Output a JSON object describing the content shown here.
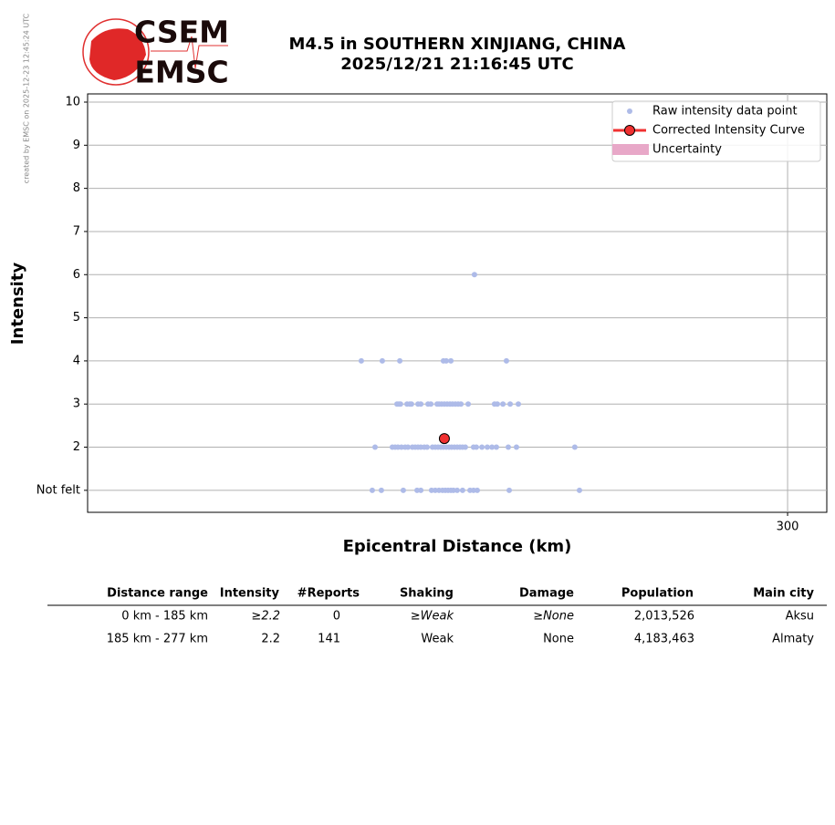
{
  "logo": {
    "top": "CSEM",
    "bottom": "EMSC"
  },
  "credit": "created by EMSC on 2025-12-23 12:45:24 UTC",
  "chart_data": {
    "type": "scatter",
    "title": "M4.5 in SOUTHERN XINJIANG, CHINA",
    "subtitle": "2025/12/21 21:16:45 UTC",
    "x_label": "Epicentral Distance (km)",
    "y_label": "Intensity",
    "xlim": [
      0,
      316.8
    ],
    "xticks": [
      300
    ],
    "ylim": [
      0.49,
      10.19
    ],
    "yticks": [
      {
        "value": 1,
        "label": "Not felt"
      },
      2,
      3,
      4,
      5,
      6,
      7,
      8,
      9,
      10
    ],
    "grid": true,
    "legend": "upper right",
    "series": [
      {
        "name": "Raw intensity data point",
        "color": "#aebbe8",
        "x": [
          165.8,
          117.3,
          126.3,
          133.8,
          152.5,
          153.7,
          155.7,
          179.5,
          132.6,
          133.4,
          134.1,
          136.9,
          138.1,
          138.8,
          141.6,
          142.8,
          145.9,
          147.1,
          149.8,
          150.6,
          151.7,
          152.9,
          154.1,
          155.3,
          156.4,
          157.6,
          158.8,
          160.0,
          163.1,
          174.4,
          175.6,
          178.0,
          181.1,
          184.6,
          123.2,
          130.6,
          131.8,
          133.0,
          134.5,
          136.1,
          137.3,
          139.2,
          140.4,
          141.6,
          142.8,
          144.3,
          145.5,
          147.8,
          149.0,
          150.2,
          151.4,
          152.5,
          153.7,
          154.9,
          156.0,
          157.2,
          158.4,
          159.6,
          160.7,
          161.9,
          165.4,
          166.6,
          169.0,
          171.3,
          173.3,
          175.2,
          180.3,
          183.8,
          208.8,
          122.0,
          125.9,
          135.3,
          141.2,
          142.8,
          147.4,
          149.0,
          150.6,
          152.1,
          153.3,
          154.5,
          155.7,
          156.8,
          158.4,
          160.7,
          163.9,
          165.4,
          167.0,
          180.7,
          210.8
        ],
        "values": [
          6,
          4,
          4,
          4,
          4,
          4,
          4,
          4,
          3,
          3,
          3,
          3,
          3,
          3,
          3,
          3,
          3,
          3,
          3,
          3,
          3,
          3,
          3,
          3,
          3,
          3,
          3,
          3,
          3,
          3,
          3,
          3,
          3,
          3,
          2,
          2,
          2,
          2,
          2,
          2,
          2,
          2,
          2,
          2,
          2,
          2,
          2,
          2,
          2,
          2,
          2,
          2,
          2,
          2,
          2,
          2,
          2,
          2,
          2,
          2,
          2,
          2,
          2,
          2,
          2,
          2,
          2,
          2,
          2,
          1,
          1,
          1,
          1,
          1,
          1,
          1,
          1,
          1,
          1,
          1,
          1,
          1,
          1,
          1,
          1,
          1,
          1,
          1,
          1
        ]
      },
      {
        "name": "Corrected Intensity Curve",
        "color": "#f03030",
        "x": [
          152.9
        ],
        "values": [
          2.2
        ]
      },
      {
        "name": "Uncertainty",
        "color": "#e8a8c8",
        "x": [],
        "values": []
      }
    ]
  },
  "table": {
    "headers": [
      "Distance range",
      "Intensity",
      "#Reports",
      "Shaking",
      "Damage",
      "Population",
      "Main city"
    ],
    "rows": [
      [
        "0 km -  185 km",
        "≥2.2",
        "0",
        "≥Weak",
        "≥None",
        "2,013,526",
        "Aksu"
      ],
      [
        "185 km -  277 km",
        "2.2",
        "141",
        "Weak",
        "None",
        "4,183,463",
        "Almaty"
      ]
    ]
  }
}
